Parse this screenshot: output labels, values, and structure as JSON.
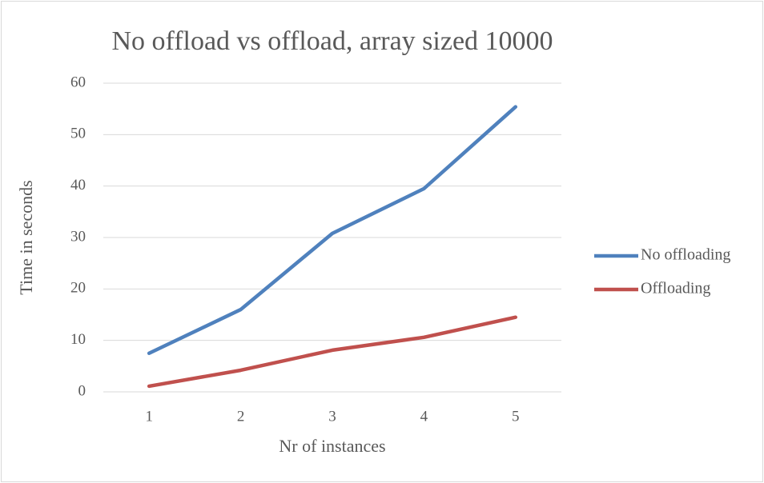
{
  "chart_data": {
    "type": "line",
    "title": "No offload vs offload, array sized 10000",
    "x_label": "Nr of instances",
    "y_label": "Time in seconds",
    "categories": [
      "1",
      "2",
      "3",
      "4",
      "5"
    ],
    "series": [
      {
        "name": "No offloading",
        "color": "#4f81bd",
        "values": [
          7.5,
          16,
          30.8,
          39.5,
          55.4
        ]
      },
      {
        "name": "Offloading",
        "color": "#c0504d",
        "values": [
          1.1,
          4.2,
          8.1,
          10.6,
          14.5
        ]
      }
    ],
    "ylim": [
      0,
      60
    ],
    "yticks": [
      0,
      10,
      20,
      30,
      40,
      50,
      60
    ],
    "grid": true,
    "legend": "right"
  }
}
